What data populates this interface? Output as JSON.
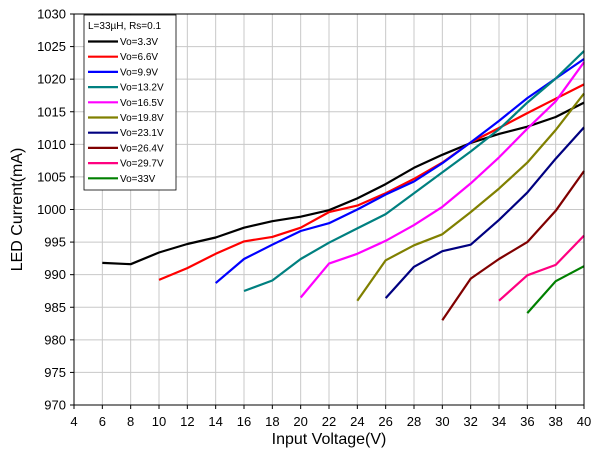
{
  "chart_data": {
    "type": "line",
    "title": "",
    "xlabel": "Input Voltage(V)",
    "ylabel": "LED Current(mA)",
    "xlim": [
      4,
      40
    ],
    "ylim": [
      970,
      1030
    ],
    "xticks": [
      4,
      6,
      8,
      10,
      12,
      14,
      16,
      18,
      20,
      22,
      24,
      26,
      28,
      30,
      32,
      34,
      36,
      38,
      40
    ],
    "yticks": [
      970,
      975,
      980,
      985,
      990,
      995,
      1000,
      1005,
      1010,
      1015,
      1020,
      1025,
      1030
    ],
    "grid": true,
    "legend_position": "top-left",
    "legend_title": "L=33µH, Rs=0.1",
    "series": [
      {
        "name": "Vo=3.3V",
        "color": "#000000",
        "x": [
          6,
          8,
          10,
          12,
          14,
          16,
          18,
          20,
          22,
          24,
          26,
          28,
          30,
          32,
          34,
          36,
          38,
          40
        ],
        "y": [
          991.8,
          991.6,
          993.4,
          994.7,
          995.7,
          997.2,
          998.2,
          998.9,
          999.9,
          1001.7,
          1003.9,
          1006.4,
          1008.4,
          1010.2,
          1011.6,
          1012.7,
          1014.2,
          1016.4
        ]
      },
      {
        "name": "Vo=6.6V",
        "color": "#ff0000",
        "x": [
          10,
          12,
          14,
          16,
          18,
          20,
          22,
          24,
          26,
          28,
          30,
          32,
          34,
          36,
          38,
          40
        ],
        "y": [
          989.2,
          991.0,
          993.2,
          995.1,
          995.8,
          997.2,
          999.6,
          1000.6,
          1002.5,
          1004.7,
          1007.2,
          1010.3,
          1012.5,
          1014.8,
          1017.0,
          1019.2
        ]
      },
      {
        "name": "Vo=9.9V",
        "color": "#0000ff",
        "x": [
          14,
          16,
          18,
          20,
          22,
          24,
          26,
          28,
          30,
          32,
          34,
          36,
          38,
          40
        ],
        "y": [
          988.7,
          992.4,
          994.6,
          996.7,
          997.9,
          1000.0,
          1002.3,
          1004.3,
          1007.1,
          1010.3,
          1013.6,
          1017.1,
          1020.1,
          1023.1
        ]
      },
      {
        "name": "Vo=13.2V",
        "color": "#008080",
        "x": [
          16,
          18,
          20,
          22,
          24,
          26,
          28,
          30,
          32,
          34,
          36,
          38,
          40
        ],
        "y": [
          987.5,
          989.1,
          992.4,
          994.9,
          997.1,
          999.3,
          1002.5,
          1005.7,
          1008.9,
          1012.3,
          1016.4,
          1020.1,
          1024.3
        ]
      },
      {
        "name": "Vo=16.5V",
        "color": "#ff00ff",
        "x": [
          20,
          22,
          24,
          26,
          28,
          30,
          32,
          34,
          36,
          38,
          40
        ],
        "y": [
          986.5,
          991.7,
          993.2,
          995.2,
          997.6,
          1000.4,
          1004.0,
          1008.0,
          1012.4,
          1016.6,
          1022.6
        ]
      },
      {
        "name": "Vo=19.8V",
        "color": "#808000",
        "x": [
          24,
          26,
          28,
          30,
          32,
          34,
          36,
          38,
          40
        ],
        "y": [
          986.0,
          992.2,
          994.5,
          996.2,
          999.6,
          1003.2,
          1007.2,
          1012.2,
          1017.8
        ]
      },
      {
        "name": "Vo=23.1V",
        "color": "#000080",
        "x": [
          26,
          28,
          30,
          32,
          34,
          36,
          38,
          40
        ],
        "y": [
          986.4,
          991.2,
          993.6,
          994.6,
          998.4,
          1002.6,
          1007.8,
          1012.6
        ]
      },
      {
        "name": "Vo=26.4V",
        "color": "#800000",
        "x": [
          30,
          32,
          34,
          36,
          38,
          40
        ],
        "y": [
          983.0,
          989.4,
          992.4,
          995.0,
          999.8,
          1005.9
        ]
      },
      {
        "name": "Vo=29.7V",
        "color": "#ff0080",
        "x": [
          34,
          36,
          38,
          40
        ],
        "y": [
          986.0,
          989.9,
          991.5,
          996.0
        ]
      },
      {
        "name": "Vo=33V",
        "color": "#008000",
        "x": [
          36,
          38,
          40
        ],
        "y": [
          984.1,
          989.0,
          991.3
        ]
      }
    ]
  }
}
